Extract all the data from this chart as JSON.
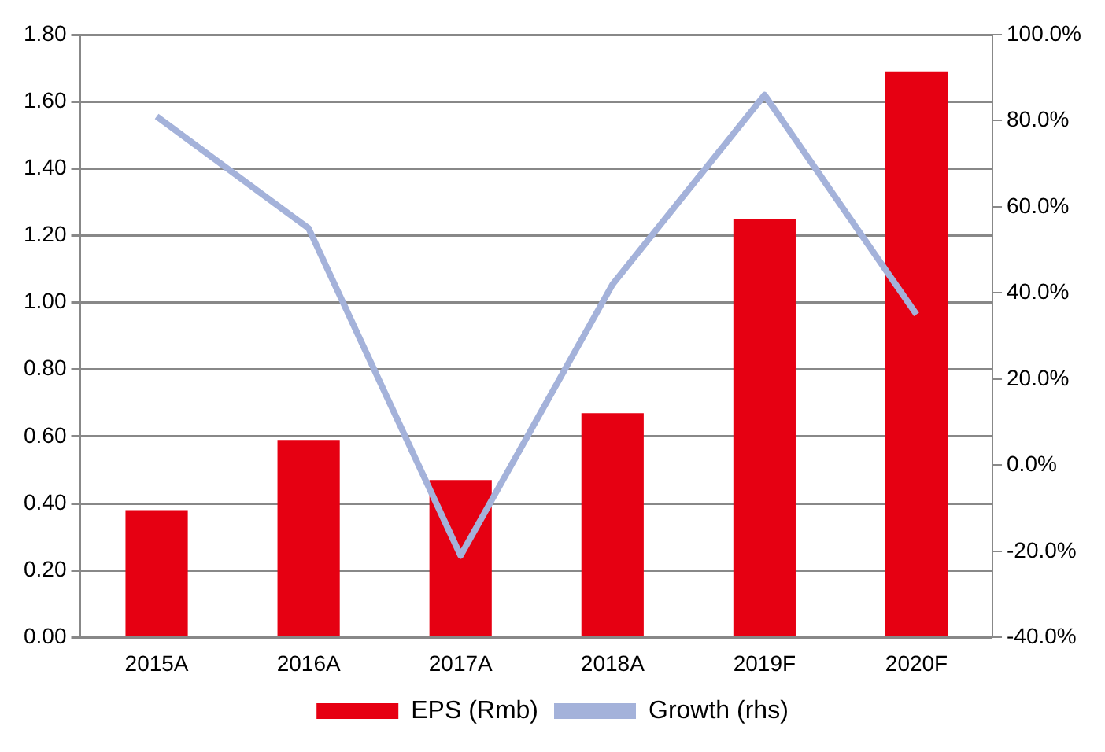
{
  "chart_data": {
    "type": "bar",
    "categories": [
      "2015A",
      "2016A",
      "2017A",
      "2018A",
      "2019F",
      "2020F"
    ],
    "series": [
      {
        "name": "EPS (Rmb)",
        "color": "#e60012",
        "values": [
          0.38,
          0.59,
          0.47,
          0.67,
          1.25,
          1.69
        ]
      },
      {
        "name": "Growth (rhs)",
        "type": "line",
        "axis": "y2",
        "color": "#a4b2da",
        "values": [
          81,
          55,
          -21,
          42,
          86,
          35
        ]
      }
    ],
    "ylim": [
      0,
      1.8
    ],
    "yticks": [
      {
        "value": 0,
        "label": "0.00"
      },
      {
        "value": 0.2,
        "label": "0.20"
      },
      {
        "value": 0.4,
        "label": "0.40"
      },
      {
        "value": 0.6,
        "label": "0.60"
      },
      {
        "value": 0.8,
        "label": "0.80"
      },
      {
        "value": 1,
        "label": "1.00"
      },
      {
        "value": 1.2,
        "label": "1.20"
      },
      {
        "value": 1.4,
        "label": "1.40"
      },
      {
        "value": 1.6,
        "label": "1.60"
      },
      {
        "value": 1.8,
        "label": "1.80"
      }
    ],
    "y2lim": [
      -40,
      100
    ],
    "y2ticks": [
      {
        "value": -40,
        "label": "-40.0%"
      },
      {
        "value": -20,
        "label": "-20.0%"
      },
      {
        "value": 0,
        "label": "0.0%"
      },
      {
        "value": 20,
        "label": "20.0%"
      },
      {
        "value": 40,
        "label": "40.0%"
      },
      {
        "value": 60,
        "label": "60.0%"
      },
      {
        "value": 80,
        "label": "80.0%"
      },
      {
        "value": 100,
        "label": "100.0%"
      }
    ],
    "grid": "y",
    "legend": "bottom",
    "marker": "none",
    "line_style": "solid"
  }
}
